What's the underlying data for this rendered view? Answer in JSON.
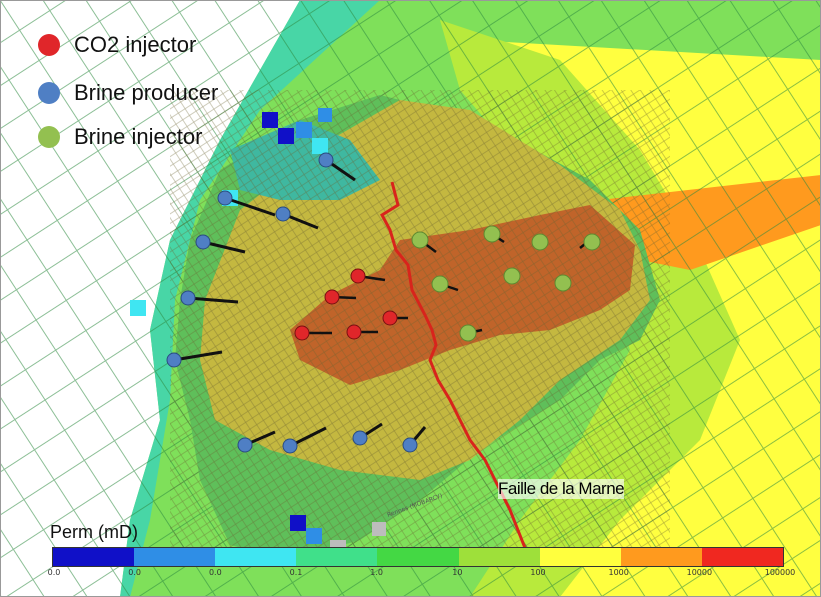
{
  "legend": {
    "co2_injector": {
      "label": "CO2 injector",
      "color": "#e0262a"
    },
    "brine_producer": {
      "label": "Brine producer",
      "color": "#4f7fc4"
    },
    "brine_injector": {
      "label": "Brine injector",
      "color": "#93c050"
    }
  },
  "fault": {
    "label": "Faille de la Marne",
    "color": "#d8241c"
  },
  "colorbar": {
    "title": "Perm (mD)",
    "colors": [
      "#1010c8",
      "#2f8ee6",
      "#3fe6f2",
      "#40e08a",
      "#44d844",
      "#9ee03a",
      "#ffff3e",
      "#ff9a1e",
      "#f02820"
    ],
    "ticks": [
      "0.0",
      "0.0",
      "0.0",
      "0.1",
      "1.0",
      "10",
      "100",
      "1000",
      "10000",
      "100000"
    ]
  },
  "map_label": "Rennes (MOBARCY)"
}
